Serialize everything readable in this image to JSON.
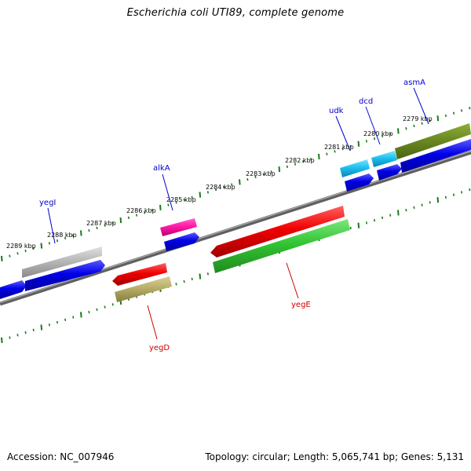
{
  "title": "Escherichia coli UTI89, complete genome",
  "footer": {
    "accession": "Accession: NC_007946",
    "summary": "Topology: circular; Length: 5,065,741 bp; Genes: 5,131"
  },
  "scale_labels": [
    "2279 kbp",
    "2280 kbp",
    "2281 kbp",
    "2282 kbp",
    "2283 kbp",
    "2284 kbp",
    "2285 kbp",
    "2286 kbp",
    "2287 kbp",
    "2288 kbp",
    "2289 kbp"
  ],
  "colors": {
    "backbone": "#808080",
    "ticks": "#1a7a1a",
    "forward_label": "#0000cc",
    "reverse_label": "#cc0000"
  },
  "genes": {
    "yegI": "yegI",
    "alkA": "alkA",
    "udk": "udk",
    "dcd": "dcd",
    "asmA": "asmA",
    "yegD": "yegD",
    "yegE": "yegE"
  }
}
